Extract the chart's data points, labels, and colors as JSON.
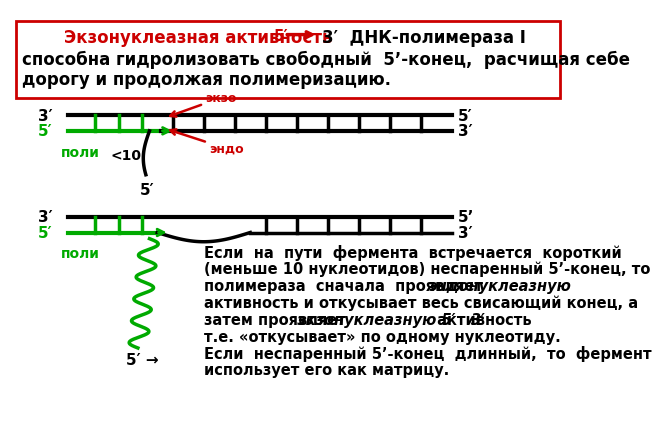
{
  "bg_color": "#ffffff",
  "box_color": "#cc0000",
  "title_red": "Экзонуклеазная активность",
  "title_5prime": "5′",
  "title_3prime": "3′",
  "title_dnk": "  ДНК-полимераза I",
  "title_line2": "способна гидролизовать свободный  5’-конец,  расчищая себе",
  "title_line3": "дорогу и продолжая полимеризацию.",
  "green_color": "#00aa00",
  "red_color": "#cc0000",
  "black_color": "#000000",
  "exzo_label": "экзо",
  "endo_label": "эндо",
  "poli_label": "поли",
  "lt10_label": "<10",
  "d1_3prime_left": "3′",
  "d1_5prime_left": "5′",
  "d1_5prime_right": "5′",
  "d1_3prime_right": "3′",
  "d2_3prime_left": "3′",
  "d2_5prime_left": "5′",
  "d2_5prime_right": "5’",
  "d2_3prime_right": "3′",
  "bottom_5prime": "5′ →",
  "rtext_l1": "Если  на  пути  фермента  встречается  короткий",
  "rtext_l2": "(меньше 10 нуклеотидов) неспаренный 5’-конец, то",
  "rtext_l3a": "полимераза  сначала  проявляет  ",
  "rtext_l3b": "эндонуклеазную",
  "rtext_l4": "активность и откусывает весь свисающий конец, а",
  "rtext_l5a": "затем проявляет ",
  "rtext_l5b": "экзонуклеазную 5′   3′",
  "rtext_l5c": " активность",
  "rtext_l6": "т.е. «откусывает» по одному нуклеотиду.",
  "rtext_l7": "Если  неспаренный 5’-конец  длинный,  то  фермент",
  "rtext_l8": "использует его как матрицу."
}
